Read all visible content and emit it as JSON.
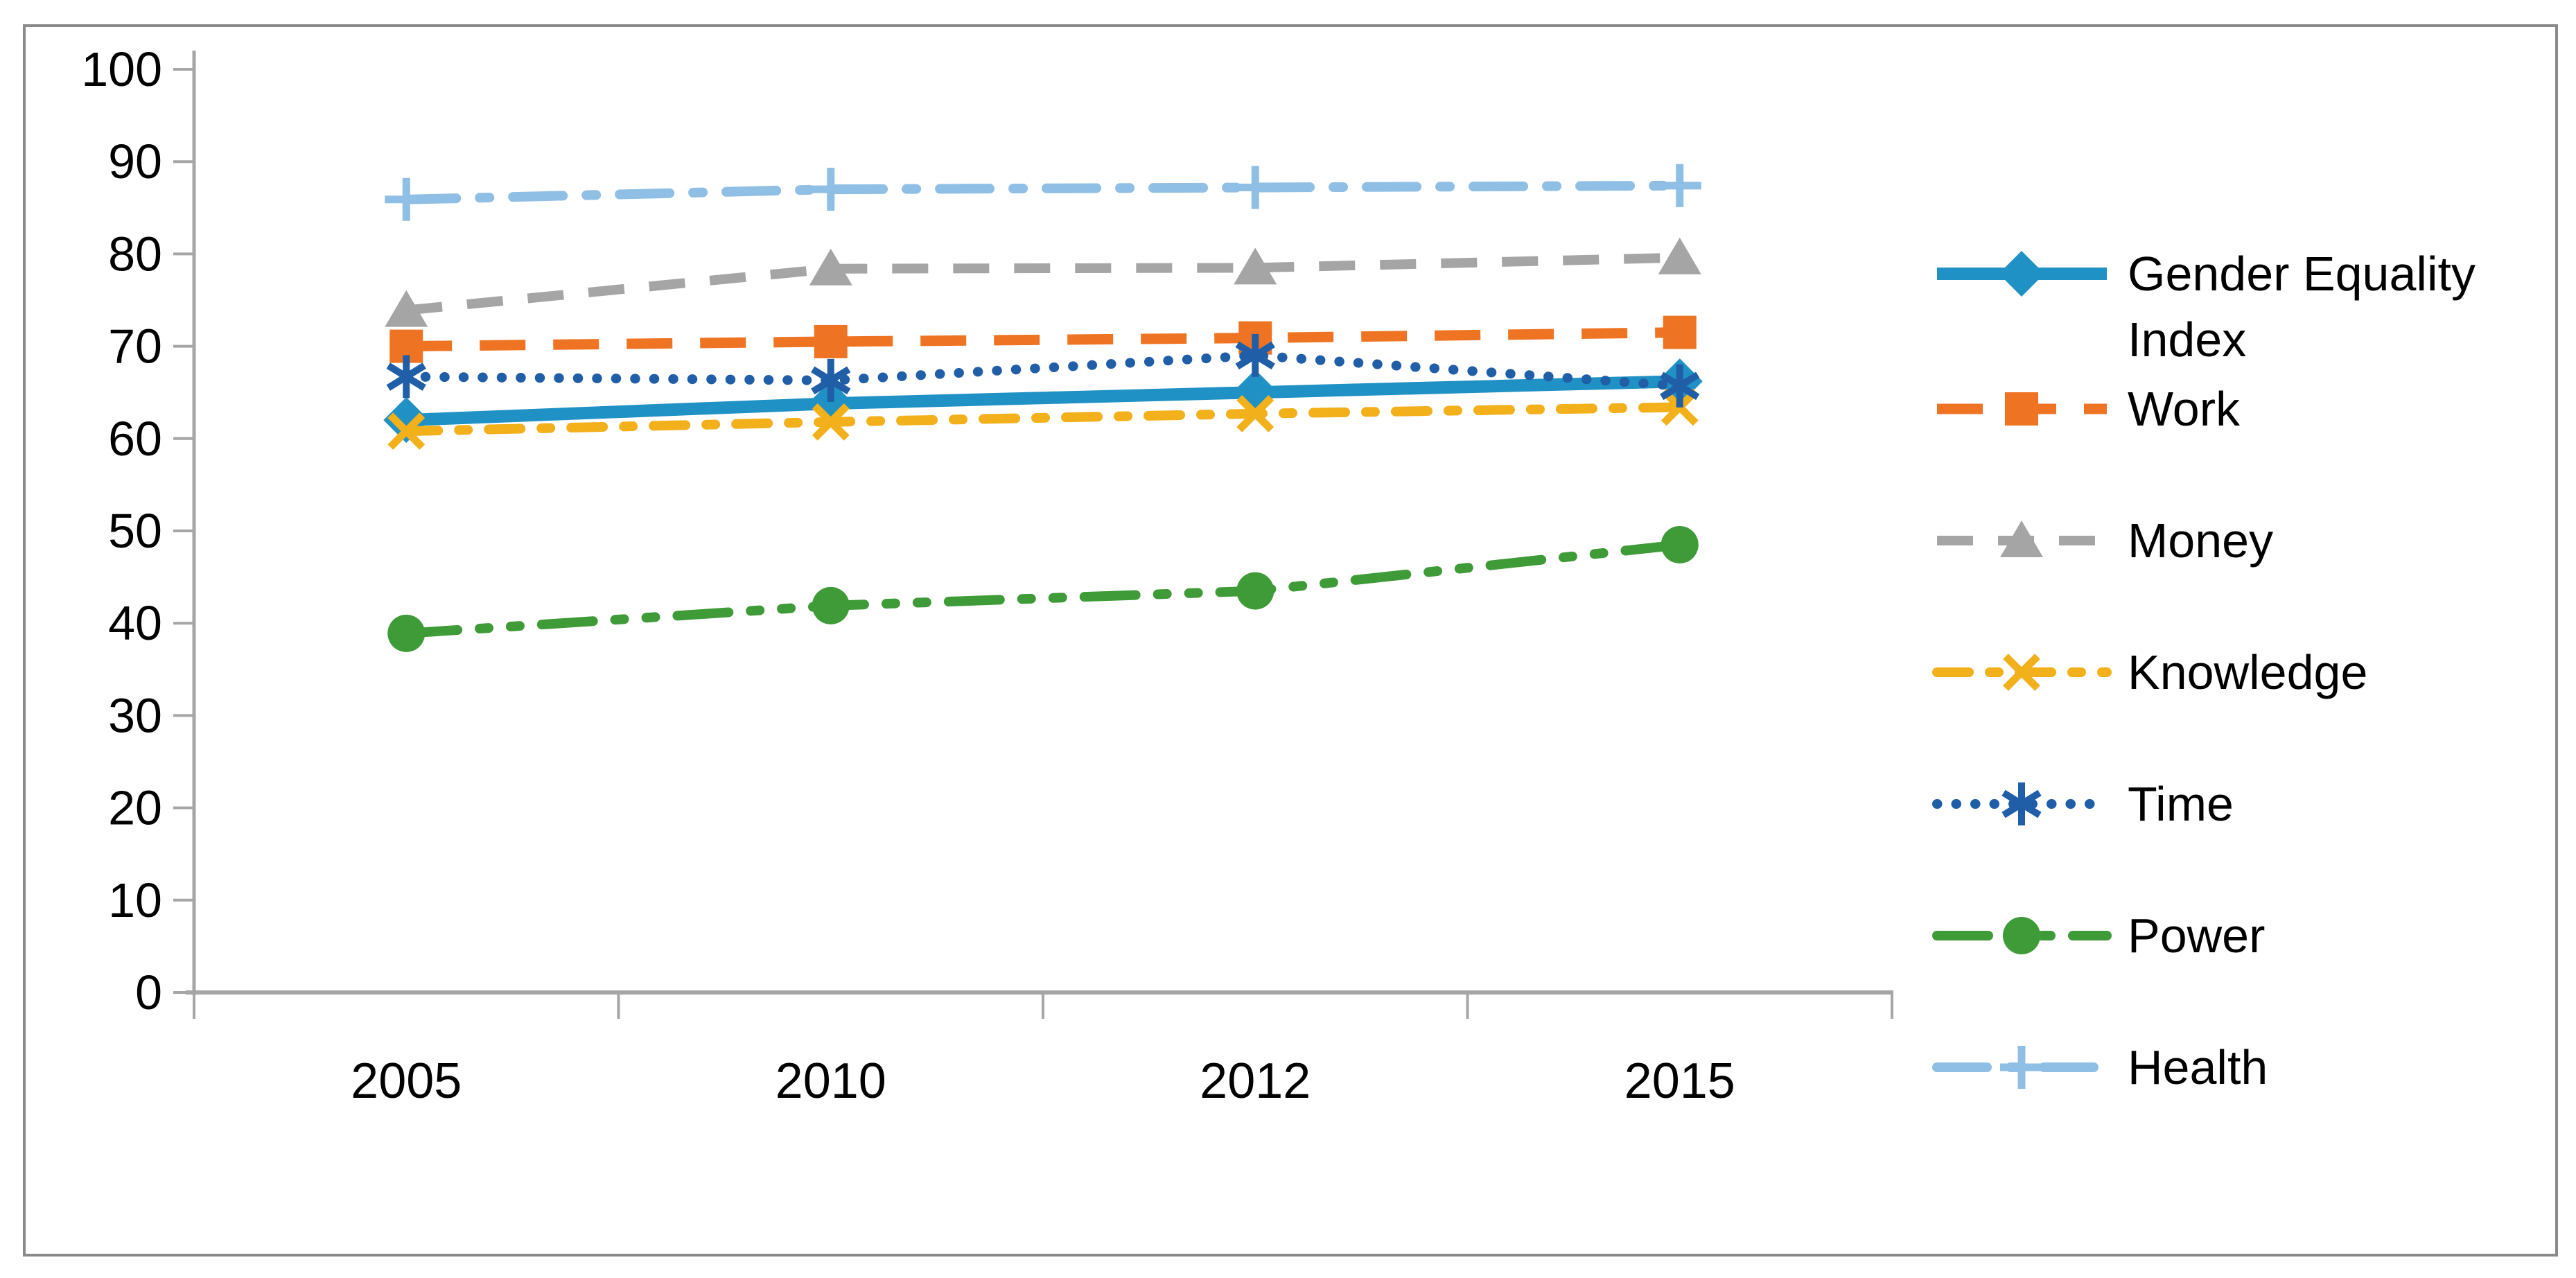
{
  "chart_data": {
    "type": "line",
    "title": "",
    "xlabel": "",
    "ylabel": "",
    "categories": [
      "2005",
      "2010",
      "2012",
      "2015"
    ],
    "ylim": [
      0,
      100
    ],
    "yticks": [
      0,
      10,
      20,
      30,
      40,
      50,
      60,
      70,
      80,
      90,
      100
    ],
    "grid": false,
    "legend_position": "right",
    "background_color": "#ffffff",
    "border_color": "#8a8a8a",
    "axis_color": "#a6a6a6",
    "text_color": "#000000",
    "series": [
      {
        "name": "Gender Equality Index",
        "legend_lines": [
          "Gender Equality",
          "Index"
        ],
        "values": [
          62.0,
          63.8,
          65.0,
          66.2
        ],
        "color": "#2091c4",
        "marker": "diamond",
        "line_style": "solid"
      },
      {
        "name": "Work",
        "legend_lines": [
          "Work"
        ],
        "values": [
          70.0,
          70.5,
          70.9,
          71.5
        ],
        "color": "#ee7423",
        "marker": "square",
        "line_style": "long-dash"
      },
      {
        "name": "Money",
        "legend_lines": [
          "Money"
        ],
        "values": [
          73.9,
          78.4,
          78.5,
          79.6
        ],
        "color": "#a5a5a5",
        "marker": "triangle",
        "line_style": "dash"
      },
      {
        "name": "Knowledge",
        "legend_lines": [
          "Knowledge"
        ],
        "values": [
          60.8,
          61.8,
          62.7,
          63.4
        ],
        "color": "#f2b01b",
        "marker": "x",
        "line_style": "dash-dot-short"
      },
      {
        "name": "Time",
        "legend_lines": [
          "Time"
        ],
        "values": [
          66.7,
          66.3,
          69.0,
          65.7
        ],
        "color": "#205ea7",
        "marker": "asterisk",
        "line_style": "dot"
      },
      {
        "name": "Power",
        "legend_lines": [
          "Power"
        ],
        "values": [
          38.9,
          41.9,
          43.5,
          48.5
        ],
        "color": "#3f9a38",
        "marker": "circle",
        "line_style": "dash-dot-dot"
      },
      {
        "name": "Health",
        "legend_lines": [
          "Health"
        ],
        "values": [
          85.9,
          87.0,
          87.2,
          87.4
        ],
        "color": "#8fbfe4",
        "marker": "plus",
        "line_style": "dash-dot"
      }
    ]
  }
}
